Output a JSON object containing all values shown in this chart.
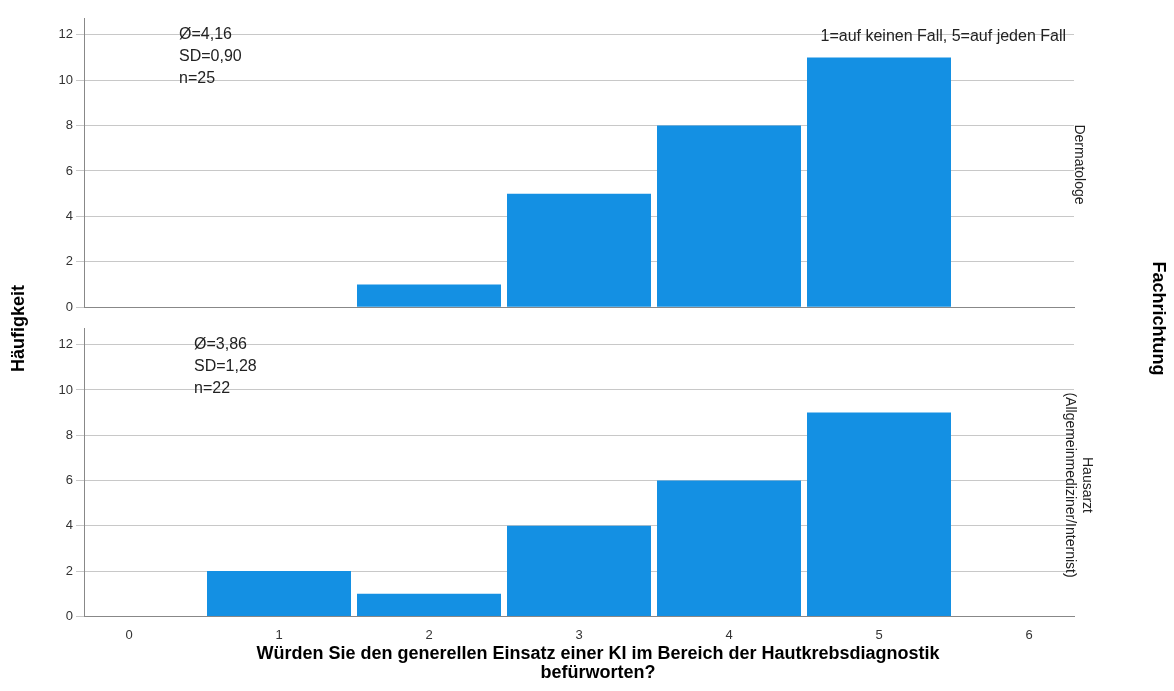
{
  "chart_data": [
    {
      "type": "histogram",
      "y2label": "Dermatologe",
      "subtitle": "1=auf keinen Fall, 5=auf jeden Fall",
      "ylabel": "Häufigkeit",
      "legend_title": "Fachrichtung",
      "bins": [
        0.5,
        1.5,
        2.5,
        3.5,
        4.5,
        5.5
      ],
      "values": [
        0,
        1,
        5,
        8,
        11
      ],
      "color": "#1490e3",
      "xlim": [
        -0.3,
        6.3
      ],
      "xticks": [
        0,
        1,
        2,
        3,
        4,
        5,
        6
      ],
      "ylim": [
        0,
        12.7
      ],
      "yticks": [
        0,
        2,
        4,
        6,
        8,
        10,
        12
      ],
      "grid": "y",
      "tick_labels": "y",
      "annotations": [
        "Ø=4,16",
        "SD=0,90",
        "n=25"
      ]
    },
    {
      "type": "histogram",
      "y2label": "Hausarzt (Allgemeinmediziner/Internist)",
      "xlabel": "Würden Sie den generellen Einsatz einer KI im Bereich der Hautkrebsdiagnostik befürworten?",
      "bins": [
        0.5,
        1.5,
        2.5,
        3.5,
        4.5,
        5.5
      ],
      "values": [
        2,
        1,
        4,
        6,
        9
      ],
      "color": "#1490e3",
      "xlim": [
        -0.3,
        6.3
      ],
      "xticks": [
        0,
        1,
        2,
        3,
        4,
        5,
        6
      ],
      "ylim": [
        0,
        12.7
      ],
      "yticks": [
        0,
        2,
        4,
        6,
        8,
        10,
        12
      ],
      "grid": "y",
      "annotations": [
        "Ø=3,86",
        "SD=1,28",
        "n=22"
      ]
    }
  ]
}
